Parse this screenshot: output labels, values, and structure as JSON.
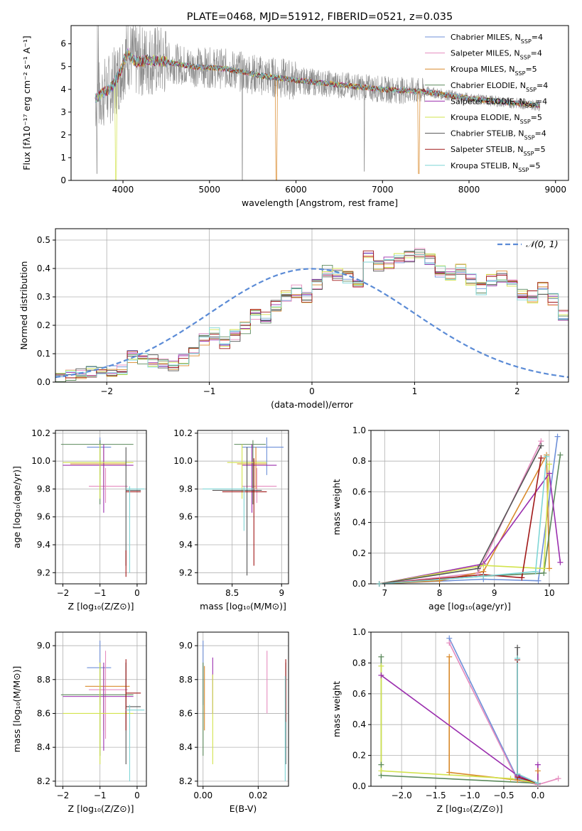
{
  "colors": {
    "Chabrier MILES": "#6d8fd8",
    "Salpeter MILES": "#e58cbf",
    "Kroupa MILES": "#d98a2b",
    "Chabrier ELODIE": "#5c8a5c",
    "Salpeter ELODIE": "#9b2fae",
    "Kroupa ELODIE": "#d2e34c",
    "Chabrier STELIB": "#555555",
    "Salpeter STELIB": "#a01818",
    "Kroupa STELIB": "#7fd6d6",
    "data": "#8c8c8c",
    "normal": "#5b8bd6"
  },
  "chart_data": [
    {
      "id": "spectrum",
      "type": "line",
      "title": "PLATE=0468, MJD=51912, FIBERID=0521, z=0.035",
      "xlabel": "wavelength [Angstrom, rest frame]",
      "ylabel": "Flux [fλ10⁻¹⁷ erg cm⁻² s⁻¹ A⁻¹]",
      "xlim": [
        3400,
        9150
      ],
      "ylim": [
        0,
        6.8
      ],
      "xticks": [
        4000,
        5000,
        6000,
        7000,
        8000,
        9000
      ],
      "yticks": [
        0,
        1,
        2,
        3,
        4,
        5,
        6
      ],
      "legend_position": "top-right",
      "legend": [
        {
          "name": "Chabrier MILES",
          "nssp": "4"
        },
        {
          "name": "Salpeter MILES",
          "nssp": "4"
        },
        {
          "name": "Kroupa MILES",
          "nssp": "5"
        },
        {
          "name": "Chabrier ELODIE",
          "nssp": "4"
        },
        {
          "name": "Salpeter ELODIE",
          "nssp": "4"
        },
        {
          "name": "Kroupa ELODIE",
          "nssp": "5"
        },
        {
          "name": "Chabrier STELIB",
          "nssp": "4"
        },
        {
          "name": "Salpeter STELIB",
          "nssp": "5"
        },
        {
          "name": "Kroupa STELIB",
          "nssp": "5"
        }
      ],
      "continuum": [
        [
          3680,
          3.6
        ],
        [
          3750,
          3.8
        ],
        [
          3850,
          4.0
        ],
        [
          3950,
          4.6
        ],
        [
          4050,
          5.6
        ],
        [
          4150,
          5.2
        ],
        [
          4300,
          5.3
        ],
        [
          4500,
          5.2
        ],
        [
          4800,
          5.0
        ],
        [
          5200,
          4.9
        ],
        [
          5600,
          4.6
        ],
        [
          6000,
          4.4
        ],
        [
          6500,
          4.2
        ],
        [
          7000,
          4.0
        ],
        [
          7500,
          3.9
        ],
        [
          8000,
          3.6
        ],
        [
          8500,
          3.4
        ],
        [
          8820,
          3.3
        ]
      ]
    },
    {
      "id": "residuals",
      "type": "step",
      "xlabel": "(data-model)/error",
      "ylabel": "Normed distribution",
      "xlim": [
        -2.5,
        2.5
      ],
      "ylim": [
        0,
        0.54
      ],
      "xticks": [
        -2,
        -1,
        0,
        1,
        2
      ],
      "yticks": [
        0.0,
        0.1,
        0.2,
        0.3,
        0.4,
        0.5
      ],
      "legend": "𝒩(0, 1)",
      "bin_width": 0.1,
      "bin_start": -2.5,
      "base_values": [
        0.02,
        0.025,
        0.03,
        0.035,
        0.035,
        0.04,
        0.045,
        0.09,
        0.085,
        0.075,
        0.065,
        0.06,
        0.08,
        0.11,
        0.15,
        0.17,
        0.14,
        0.165,
        0.19,
        0.24,
        0.23,
        0.27,
        0.3,
        0.32,
        0.3,
        0.34,
        0.39,
        0.38,
        0.37,
        0.35,
        0.44,
        0.41,
        0.42,
        0.43,
        0.44,
        0.45,
        0.43,
        0.39,
        0.38,
        0.4,
        0.36,
        0.33,
        0.36,
        0.37,
        0.34,
        0.31,
        0.3,
        0.33,
        0.29,
        0.23,
        0.22,
        0.21,
        0.19,
        0.15,
        0.14,
        0.11,
        0.09,
        0.075,
        0.07,
        0.08,
        0.075,
        0.06,
        0.05,
        0.045,
        0.04,
        0.035,
        0.03,
        0.03,
        0.025,
        0.025
      ]
    },
    {
      "id": "age-vs-Z",
      "type": "errorbar",
      "xlabel": "Z [log₁₀(Z/Z⊙)]",
      "ylabel": "age  [log₁₀(age/yr)]",
      "xlim": [
        -2.2,
        0.25
      ],
      "ylim": [
        9.12,
        10.22
      ],
      "xticks": [
        -2,
        -1,
        0
      ],
      "yticks": [
        9.2,
        9.4,
        9.6,
        9.8,
        10.0,
        10.2
      ],
      "points": [
        {
          "model": "Chabrier MILES",
          "x": -1.0,
          "xlo": -1.35,
          "xhi": -0.7,
          "y": 10.1,
          "ylo": 9.9,
          "yhi": 10.17
        },
        {
          "model": "Salpeter MILES",
          "x": -0.85,
          "xlo": -1.3,
          "xhi": -0.25,
          "y": 9.82,
          "ylo": 9.7,
          "yhi": 9.95
        },
        {
          "model": "Kroupa MILES",
          "x": -0.9,
          "xlo": -1.8,
          "xhi": -0.3,
          "y": 9.98,
          "ylo": 9.8,
          "yhi": 10.1
        },
        {
          "model": "Chabrier ELODIE",
          "x": -1.0,
          "xlo": -2.05,
          "xhi": -0.1,
          "y": 10.12,
          "ylo": 9.69,
          "yhi": 10.15
        },
        {
          "model": "Salpeter ELODIE",
          "x": -0.9,
          "xlo": -2.0,
          "xhi": -0.1,
          "y": 9.97,
          "ylo": 9.63,
          "yhi": 10.12
        },
        {
          "model": "Kroupa ELODIE",
          "x": -1.0,
          "xlo": -2.0,
          "xhi": -0.1,
          "y": 9.99,
          "ylo": 9.73,
          "yhi": 10.12
        },
        {
          "model": "Chabrier STELIB",
          "x": -0.3,
          "xlo": -0.3,
          "xhi": 0.1,
          "y": 9.79,
          "ylo": 9.25,
          "yhi": 10.1
        },
        {
          "model": "Salpeter STELIB",
          "x": -0.3,
          "xlo": -0.3,
          "xhi": 0.1,
          "y": 9.78,
          "ylo": 9.17,
          "yhi": 9.36
        },
        {
          "model": "Kroupa STELIB",
          "x": -0.2,
          "xlo": -0.3,
          "xhi": 0.2,
          "y": 9.8,
          "ylo": 9.2,
          "yhi": 9.82
        }
      ]
    },
    {
      "id": "age-vs-mass",
      "type": "errorbar",
      "xlabel": "mass [log₁₀(M/M⊙)]",
      "ylabel": "",
      "xlim": [
        8.15,
        9.07
      ],
      "ylim": [
        9.12,
        10.22
      ],
      "xticks": [
        8.5,
        9.0
      ],
      "yticks": [
        9.2,
        9.4,
        9.6,
        9.8,
        10.0,
        10.2
      ],
      "points": [
        {
          "model": "Chabrier MILES",
          "x": 8.85,
          "xlo": 8.6,
          "xhi": 9.02,
          "y": 10.1,
          "ylo": 9.9,
          "yhi": 10.17
        },
        {
          "model": "Salpeter MILES",
          "x": 8.75,
          "xlo": 8.6,
          "xhi": 8.95,
          "y": 9.82,
          "ylo": 9.7,
          "yhi": 9.95
        },
        {
          "model": "Kroupa MILES",
          "x": 8.74,
          "xlo": 8.55,
          "xhi": 8.85,
          "y": 9.98,
          "ylo": 9.8,
          "yhi": 10.1
        },
        {
          "model": "Chabrier ELODIE",
          "x": 8.71,
          "xlo": 8.52,
          "xhi": 8.84,
          "y": 10.12,
          "ylo": 9.69,
          "yhi": 10.15
        },
        {
          "model": "Salpeter ELODIE",
          "x": 8.7,
          "xlo": 8.6,
          "xhi": 8.95,
          "y": 9.97,
          "ylo": 9.63,
          "yhi": 10.12
        },
        {
          "model": "Kroupa ELODIE",
          "x": 8.6,
          "xlo": 8.45,
          "xhi": 8.85,
          "y": 9.99,
          "ylo": 9.73,
          "yhi": 10.12
        },
        {
          "model": "Chabrier STELIB",
          "x": 8.65,
          "xlo": 8.3,
          "xhi": 8.8,
          "y": 9.79,
          "ylo": 9.18,
          "yhi": 10.1
        },
        {
          "model": "Salpeter STELIB",
          "x": 8.72,
          "xlo": 8.4,
          "xhi": 8.85,
          "y": 9.78,
          "ylo": 9.25,
          "yhi": 10.02
        },
        {
          "model": "Kroupa STELIB",
          "x": 8.62,
          "xlo": 8.2,
          "xhi": 8.72,
          "y": 9.8,
          "ylo": 9.5,
          "yhi": 9.82
        }
      ]
    },
    {
      "id": "mass-weight-vs-age",
      "type": "line",
      "xlabel": "age  [log₁₀(age/yr)]",
      "ylabel": "mass weight",
      "xlim": [
        6.75,
        10.35
      ],
      "ylim": [
        0,
        1.0
      ],
      "xticks": [
        7,
        8,
        9,
        10
      ],
      "yticks": [
        0.0,
        0.2,
        0.4,
        0.6,
        0.8,
        1.0
      ],
      "series": [
        {
          "model": "Chabrier MILES",
          "x": [
            6.9,
            8.8,
            9.8,
            10.15
          ],
          "y": [
            0.0,
            0.03,
            0.02,
            0.96
          ]
        },
        {
          "model": "Salpeter MILES",
          "x": [
            6.9,
            8.7,
            9.85
          ],
          "y": [
            0.0,
            0.07,
            0.93
          ]
        },
        {
          "model": "Kroupa MILES",
          "x": [
            6.9,
            8.0,
            8.8,
            9.95,
            10.0
          ],
          "y": [
            0.0,
            0.02,
            0.08,
            0.84,
            0.1
          ]
        },
        {
          "model": "Chabrier ELODIE",
          "x": [
            6.9,
            8.8,
            9.9,
            10.2
          ],
          "y": [
            0.0,
            0.05,
            0.07,
            0.84
          ]
        },
        {
          "model": "Salpeter ELODIE",
          "x": [
            6.9,
            8.8,
            10.0,
            10.2
          ],
          "y": [
            0.0,
            0.13,
            0.72,
            0.14
          ]
        },
        {
          "model": "Kroupa ELODIE",
          "x": [
            6.9,
            8.8,
            9.9,
            10.0
          ],
          "y": [
            0.0,
            0.12,
            0.1,
            0.78
          ]
        },
        {
          "model": "Chabrier STELIB",
          "x": [
            6.9,
            8.7,
            9.85
          ],
          "y": [
            0.0,
            0.1,
            0.9
          ]
        },
        {
          "model": "Salpeter STELIB",
          "x": [
            6.9,
            8.8,
            9.5,
            9.85
          ],
          "y": [
            0.0,
            0.06,
            0.04,
            0.82
          ]
        },
        {
          "model": "Kroupa STELIB",
          "x": [
            6.9,
            8.8,
            9.75,
            9.95
          ],
          "y": [
            0.0,
            0.05,
            0.08,
            0.83
          ]
        }
      ]
    },
    {
      "id": "mass-vs-Z",
      "type": "errorbar",
      "xlabel": "Z [log₁₀(Z/Z⊙)]",
      "ylabel": "mass [log₁₀(M/M⊙)]",
      "xlim": [
        -2.2,
        0.25
      ],
      "ylim": [
        8.17,
        9.08
      ],
      "xticks": [
        -2,
        -1,
        0
      ],
      "yticks": [
        8.2,
        8.4,
        8.6,
        8.8,
        9.0
      ],
      "points": [
        {
          "model": "Chabrier MILES",
          "x": -1.0,
          "xlo": -1.35,
          "xhi": -0.7,
          "y": 8.87,
          "ylo": 8.65,
          "yhi": 9.03
        },
        {
          "model": "Salpeter MILES",
          "x": -0.85,
          "xlo": -1.3,
          "xhi": -0.25,
          "y": 8.74,
          "ylo": 8.45,
          "yhi": 8.97
        },
        {
          "model": "Kroupa MILES",
          "x": -0.9,
          "xlo": -1.4,
          "xhi": -0.2,
          "y": 8.76,
          "ylo": 8.5,
          "yhi": 8.88
        },
        {
          "model": "Chabrier ELODIE",
          "x": -1.0,
          "xlo": -2.05,
          "xhi": -0.1,
          "y": 8.71,
          "ylo": 8.35,
          "yhi": 8.9
        },
        {
          "model": "Salpeter ELODIE",
          "x": -0.9,
          "xlo": -2.0,
          "xhi": -0.1,
          "y": 8.7,
          "ylo": 8.38,
          "yhi": 8.9
        },
        {
          "model": "Kroupa ELODIE",
          "x": -1.0,
          "xlo": -2.0,
          "xhi": -0.1,
          "y": 8.6,
          "ylo": 8.3,
          "yhi": 8.9
        },
        {
          "model": "Chabrier STELIB",
          "x": -0.3,
          "xlo": -0.3,
          "xhi": 0.1,
          "y": 8.64,
          "ylo": 8.3,
          "yhi": 8.9
        },
        {
          "model": "Salpeter STELIB",
          "x": -0.3,
          "xlo": -0.3,
          "xhi": 0.1,
          "y": 8.72,
          "ylo": 8.5,
          "yhi": 8.92
        },
        {
          "model": "Kroupa STELIB",
          "x": -0.2,
          "xlo": -0.3,
          "xhi": 0.2,
          "y": 8.62,
          "ylo": 8.2,
          "yhi": 8.65
        }
      ]
    },
    {
      "id": "mass-vs-EBV",
      "type": "errorbar",
      "xlabel": "E(B-V)",
      "ylabel": "",
      "xlim": [
        -0.002,
        0.031
      ],
      "ylim": [
        8.17,
        9.08
      ],
      "xticks": [
        0.0,
        0.02
      ],
      "xtick_labels": [
        "0.00",
        "0.02"
      ],
      "yticks": [
        8.2,
        8.4,
        8.6,
        8.8,
        9.0
      ],
      "points": [
        {
          "model": "Chabrier MILES",
          "x": 0.0,
          "y": 8.87,
          "ylo": 8.65,
          "yhi": 9.03
        },
        {
          "model": "Salpeter MILES",
          "x": 0.0232,
          "y": 8.74,
          "ylo": 8.6,
          "yhi": 8.97
        },
        {
          "model": "Kroupa MILES",
          "x": 0.0005,
          "y": 8.76,
          "ylo": 8.5,
          "yhi": 8.88
        },
        {
          "model": "Chabrier ELODIE",
          "x": 0.0,
          "y": 8.71,
          "ylo": 8.35,
          "yhi": 8.9
        },
        {
          "model": "Salpeter ELODIE",
          "x": 0.0035,
          "y": 8.7,
          "ylo": 8.6,
          "yhi": 8.93
        },
        {
          "model": "Kroupa ELODIE",
          "x": 0.0035,
          "y": 8.6,
          "ylo": 8.3,
          "yhi": 8.83
        },
        {
          "model": "Chabrier STELIB",
          "x": 0.03,
          "y": 8.64,
          "ylo": 8.3,
          "yhi": 8.9
        },
        {
          "model": "Salpeter STELIB",
          "x": 0.03,
          "y": 8.72,
          "ylo": 8.55,
          "yhi": 8.92
        },
        {
          "model": "Kroupa STELIB",
          "x": 0.0298,
          "y": 8.62,
          "ylo": 8.2,
          "yhi": 8.82
        }
      ]
    },
    {
      "id": "mass-weight-vs-Z",
      "type": "line",
      "xlabel": "Z [log₁₀(Z/Z⊙)]",
      "ylabel": "mass weight",
      "xlim": [
        -2.45,
        0.45
      ],
      "ylim": [
        0,
        1.0
      ],
      "xticks": [
        -2.0,
        -1.5,
        -1.0,
        -0.5,
        0.0
      ],
      "xtick_labels": [
        "−2.0",
        "−1.5",
        "−1.0",
        "−0.5",
        "0.0"
      ],
      "yticks": [
        0.0,
        0.2,
        0.4,
        0.6,
        0.8,
        1.0
      ],
      "series": [
        {
          "model": "Chabrier MILES",
          "x": [
            -1.3,
            -0.3,
            0.0
          ],
          "y": [
            0.96,
            0.05,
            0.02
          ]
        },
        {
          "model": "Salpeter MILES",
          "x": [
            -1.3,
            -0.3,
            0.0,
            0.3
          ],
          "y": [
            0.93,
            0.04,
            0.01,
            0.05
          ]
        },
        {
          "model": "Kroupa MILES",
          "x": [
            -1.3,
            -1.3,
            -0.3,
            0.0,
            0.0
          ],
          "y": [
            0.84,
            0.09,
            0.04,
            0.02,
            0.1
          ]
        },
        {
          "model": "Chabrier ELODIE",
          "x": [
            -2.3,
            -2.3,
            -2.3,
            0.0
          ],
          "y": [
            0.84,
            0.14,
            0.07,
            0.02
          ]
        },
        {
          "model": "Salpeter ELODIE",
          "x": [
            -2.3,
            -0.3,
            0.0,
            0.0
          ],
          "y": [
            0.72,
            0.07,
            0.02,
            0.14
          ]
        },
        {
          "model": "Kroupa ELODIE",
          "x": [
            -2.3,
            -2.3,
            -0.4,
            0.0
          ],
          "y": [
            0.78,
            0.1,
            0.05,
            0.02
          ]
        },
        {
          "model": "Chabrier STELIB",
          "x": [
            -0.3,
            -0.3,
            0.0
          ],
          "y": [
            0.9,
            0.08,
            0.02
          ]
        },
        {
          "model": "Salpeter STELIB",
          "x": [
            -0.3,
            -0.3,
            0.0
          ],
          "y": [
            0.82,
            0.06,
            0.02
          ]
        },
        {
          "model": "Kroupa STELIB",
          "x": [
            -0.3,
            -0.3,
            0.0
          ],
          "y": [
            0.83,
            0.08,
            0.02
          ]
        }
      ]
    }
  ]
}
